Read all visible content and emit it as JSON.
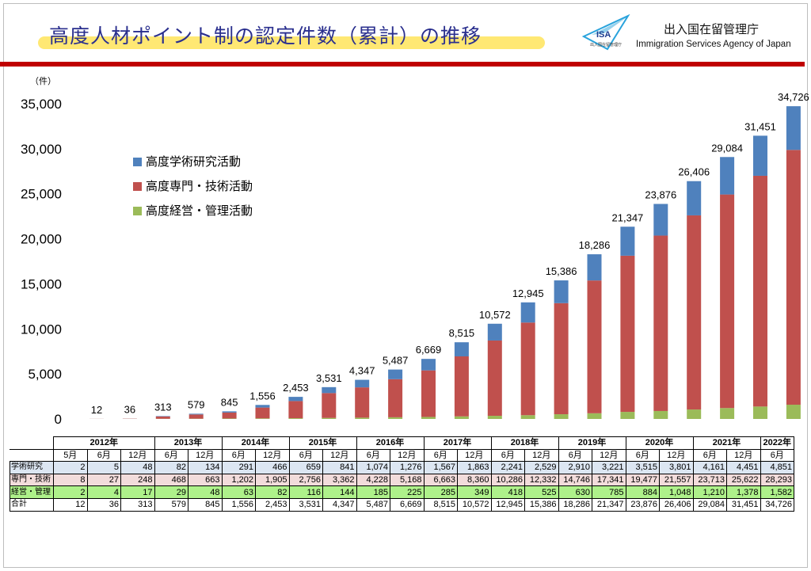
{
  "header": {
    "title": "高度人材ポイント制の認定件数（累計）の推移",
    "logo_text": "ISA",
    "logo_subtext": "出入国在留管理庁",
    "agency_ja": "出入国在留管理庁",
    "agency_en": "Immigration Services Agency of Japan"
  },
  "colors": {
    "academic": "#4f81bd",
    "technical": "#c0504d",
    "business": "#9bbb59",
    "title_text": "#2a2f8e",
    "title_highlight": "#ffe873",
    "rule": "#c00000"
  },
  "chart_data": {
    "type": "bar",
    "stacked": true,
    "unit_label": "（件）",
    "ylim": [
      0,
      35000
    ],
    "yticks": [
      "0",
      "5,000",
      "10,000",
      "15,000",
      "20,000",
      "25,000",
      "30,000",
      "35,000"
    ],
    "ytick_values": [
      0,
      5000,
      10000,
      15000,
      20000,
      25000,
      30000,
      35000
    ],
    "grid": false,
    "legend_position": "top-left",
    "categories": [
      "2012年5月",
      "2012年6月",
      "2012年12月",
      "2013年6月",
      "2013年12月",
      "2014年6月",
      "2014年12月",
      "2015年6月",
      "2015年12月",
      "2016年6月",
      "2016年12月",
      "2017年6月",
      "2017年12月",
      "2018年6月",
      "2018年12月",
      "2019年6月",
      "2019年12月",
      "2020年6月",
      "2020年12月",
      "2021年6月",
      "2021年12月",
      "2022年6月"
    ],
    "series": [
      {
        "name": "高度経営・管理活動",
        "values": [
          2,
          4,
          17,
          29,
          48,
          63,
          82,
          116,
          144,
          185,
          225,
          285,
          349,
          418,
          525,
          630,
          785,
          884,
          1048,
          1210,
          1378,
          1582
        ]
      },
      {
        "name": "高度専門・技術活動",
        "values": [
          8,
          27,
          248,
          468,
          663,
          1202,
          1905,
          2756,
          3362,
          4228,
          5168,
          6663,
          8360,
          10286,
          12332,
          14746,
          17341,
          19477,
          21557,
          23713,
          25622,
          28293
        ]
      },
      {
        "name": "高度学術研究活動",
        "values": [
          2,
          5,
          48,
          82,
          134,
          291,
          466,
          659,
          841,
          1074,
          1276,
          1567,
          1863,
          2241,
          2529,
          2910,
          3221,
          3515,
          3801,
          4161,
          4451,
          4851
        ]
      }
    ],
    "totals": [
      12,
      36,
      313,
      579,
      845,
      1556,
      2453,
      3531,
      4347,
      5487,
      6669,
      8515,
      10572,
      12945,
      15386,
      18286,
      21347,
      23876,
      26406,
      29084,
      31451,
      34726
    ],
    "total_labels": [
      "12",
      "36",
      "313",
      "579",
      "845",
      "1,556",
      "2,453",
      "3,531",
      "4,347",
      "5,487",
      "6,669",
      "8,515",
      "10,572",
      "12,945",
      "15,386",
      "18,286",
      "21,347",
      "23,876",
      "26,406",
      "29,084",
      "31,451",
      "34,726"
    ],
    "legend": [
      "高度学術研究活動",
      "高度専門・技術活動",
      "高度経営・管理活動"
    ]
  },
  "table": {
    "years": [
      {
        "label": "2012年",
        "span": 3
      },
      {
        "label": "2013年",
        "span": 2
      },
      {
        "label": "2014年",
        "span": 2
      },
      {
        "label": "2015年",
        "span": 2
      },
      {
        "label": "2016年",
        "span": 2
      },
      {
        "label": "2017年",
        "span": 2
      },
      {
        "label": "2018年",
        "span": 2
      },
      {
        "label": "2019年",
        "span": 2
      },
      {
        "label": "2020年",
        "span": 2
      },
      {
        "label": "2021年",
        "span": 2
      },
      {
        "label": "2022年",
        "span": 1
      }
    ],
    "months": [
      "5月",
      "6月",
      "12月",
      "6月",
      "12月",
      "6月",
      "12月",
      "6月",
      "12月",
      "6月",
      "12月",
      "6月",
      "12月",
      "6月",
      "12月",
      "6月",
      "12月",
      "6月",
      "12月",
      "6月",
      "12月",
      "6月"
    ],
    "rows": [
      {
        "label": "学術研究",
        "cls": "r-blue",
        "values": [
          "2",
          "5",
          "48",
          "82",
          "134",
          "291",
          "466",
          "659",
          "841",
          "1,074",
          "1,276",
          "1,567",
          "1,863",
          "2,241",
          "2,529",
          "2,910",
          "3,221",
          "3,515",
          "3,801",
          "4,161",
          "4,451",
          "4,851"
        ]
      },
      {
        "label": "専門・技術",
        "cls": "r-red",
        "values": [
          "8",
          "27",
          "248",
          "468",
          "663",
          "1,202",
          "1,905",
          "2,756",
          "3,362",
          "4,228",
          "5,168",
          "6,663",
          "8,360",
          "10,286",
          "12,332",
          "14,746",
          "17,341",
          "19,477",
          "21,557",
          "23,713",
          "25,622",
          "28,293"
        ]
      },
      {
        "label": "経営・管理",
        "cls": "r-green",
        "values": [
          "2",
          "4",
          "17",
          "29",
          "48",
          "63",
          "82",
          "116",
          "144",
          "185",
          "225",
          "285",
          "349",
          "418",
          "525",
          "630",
          "785",
          "884",
          "1,048",
          "1,210",
          "1,378",
          "1,582"
        ]
      },
      {
        "label": "合計",
        "cls": "r-total",
        "values": [
          "12",
          "36",
          "313",
          "579",
          "845",
          "1,556",
          "2,453",
          "3,531",
          "4,347",
          "5,487",
          "6,669",
          "8,515",
          "10,572",
          "12,945",
          "15,386",
          "18,286",
          "21,347",
          "23,876",
          "26,406",
          "29,084",
          "31,451",
          "34,726"
        ]
      }
    ]
  }
}
